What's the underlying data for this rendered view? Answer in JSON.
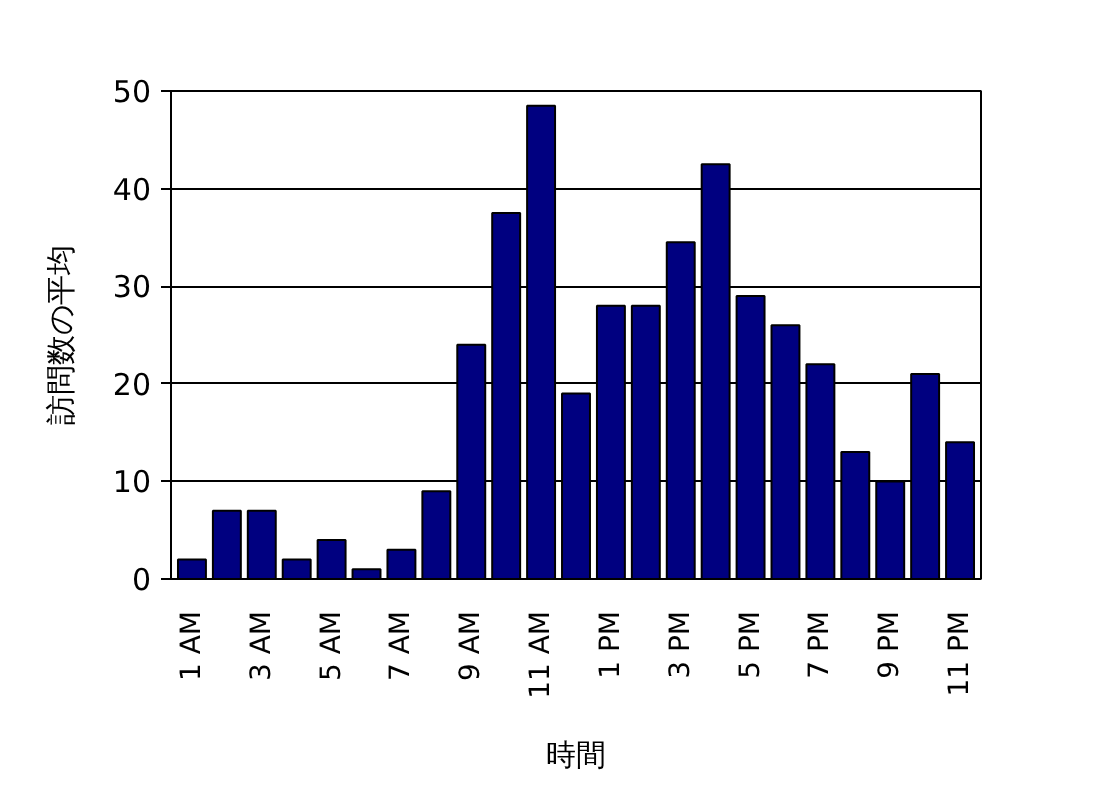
{
  "chart_data": {
    "type": "bar",
    "xlabel": "時間",
    "ylabel": "訪問数の平均",
    "categories": [
      "1 AM",
      null,
      "3 AM",
      null,
      "5 AM",
      null,
      "7 AM",
      null,
      "9 AM",
      null,
      "11 AM",
      null,
      "1 PM",
      null,
      "3 PM",
      null,
      "5 PM",
      null,
      "7 PM",
      null,
      "9 PM",
      null,
      "11 PM"
    ],
    "values": [
      2,
      7,
      7,
      2,
      4,
      1,
      3,
      9,
      24,
      37.5,
      48.5,
      19,
      28,
      28,
      34.5,
      42.5,
      29,
      26,
      22,
      13,
      10,
      21,
      14
    ],
    "color": "#000080",
    "ylim": [
      0,
      50
    ],
    "yticks": [
      0,
      10,
      20,
      30,
      40,
      50
    ],
    "grid": "y"
  }
}
